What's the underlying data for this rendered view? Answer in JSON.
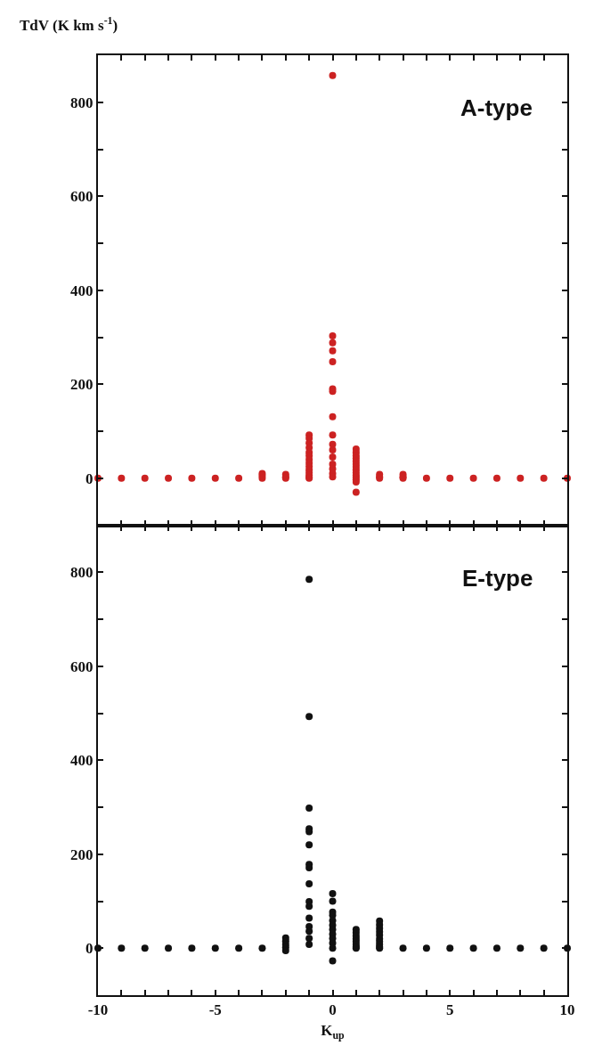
{
  "chart_data": [
    {
      "type": "scatter",
      "ylabel": "TdV (K km s$^{-1}$)",
      "annotations": [
        "A-type"
      ],
      "tick_labels": "y",
      "marker": "circle",
      "xlim": [
        -10,
        10
      ],
      "xticks": [
        {
          "value": -10,
          "label": null
        },
        {
          "value": -9,
          "label": null
        },
        {
          "value": -8,
          "label": null
        },
        {
          "value": -7,
          "label": null
        },
        {
          "value": -6,
          "label": null
        },
        {
          "value": -5,
          "label": null
        },
        {
          "value": -4,
          "label": null
        },
        {
          "value": -3,
          "label": null
        },
        {
          "value": -2,
          "label": null
        },
        {
          "value": -1,
          "label": null
        },
        {
          "value": 0,
          "label": null
        },
        {
          "value": 1,
          "label": null
        },
        {
          "value": 2,
          "label": null
        },
        {
          "value": 3,
          "label": null
        },
        {
          "value": 4,
          "label": null
        },
        {
          "value": 5,
          "label": null
        },
        {
          "value": 6,
          "label": null
        },
        {
          "value": 7,
          "label": null
        },
        {
          "value": 8,
          "label": null
        },
        {
          "value": 9,
          "label": null
        },
        {
          "value": 10,
          "label": null
        }
      ],
      "ylim": [
        -100,
        900
      ],
      "yticks": [
        {
          "value": -100,
          "label": null
        },
        0,
        {
          "value": 100,
          "label": null
        },
        200,
        {
          "value": 300,
          "label": null
        },
        400,
        {
          "value": 500,
          "label": null
        },
        600,
        {
          "value": 700,
          "label": null
        },
        800,
        {
          "value": 900,
          "label": null
        }
      ],
      "series": [
        {
          "color": "#cc2222",
          "x": [
            -10,
            -9,
            -8,
            -7,
            -6,
            -5,
            -4,
            -3,
            -3,
            -3,
            -2,
            -2,
            -2,
            -1,
            -1,
            -1,
            -1,
            -1,
            -1,
            -1,
            -1,
            -1,
            -1,
            -1,
            -1,
            -1,
            -1,
            0,
            0,
            0,
            0,
            0,
            0,
            0,
            0,
            0,
            0,
            0,
            0,
            0,
            0,
            0,
            0,
            1,
            1,
            1,
            1,
            1,
            1,
            1,
            1,
            1,
            1,
            1,
            1,
            1,
            1,
            2,
            2,
            2,
            3,
            3,
            3,
            4,
            5,
            6,
            7,
            8,
            9,
            10
          ],
          "values": [
            0,
            0,
            0,
            0,
            0,
            0,
            0,
            10,
            5,
            0,
            8,
            3,
            0,
            92,
            85,
            75,
            65,
            55,
            48,
            40,
            32,
            25,
            18,
            12,
            6,
            2,
            0,
            857,
            303,
            288,
            271,
            248,
            190,
            185,
            131,
            92,
            72,
            60,
            45,
            30,
            20,
            10,
            3,
            62,
            55,
            48,
            42,
            36,
            30,
            24,
            18,
            12,
            6,
            2,
            -3,
            -8,
            -30,
            8,
            3,
            0,
            8,
            3,
            0,
            0,
            0,
            0,
            0,
            0,
            0,
            0
          ]
        }
      ]
    },
    {
      "type": "scatter",
      "xlabel": "K$_{up}$",
      "annotations": [
        "E-type"
      ],
      "marker": "circle",
      "xlim": [
        -10,
        10
      ],
      "xticks": [
        -10,
        {
          "value": -9,
          "label": null
        },
        {
          "value": -8,
          "label": null
        },
        {
          "value": -7,
          "label": null
        },
        {
          "value": -6,
          "label": null
        },
        -5,
        {
          "value": -4,
          "label": null
        },
        {
          "value": -3,
          "label": null
        },
        {
          "value": -2,
          "label": null
        },
        {
          "value": -1,
          "label": null
        },
        0,
        {
          "value": 1,
          "label": null
        },
        {
          "value": 2,
          "label": null
        },
        {
          "value": 3,
          "label": null
        },
        {
          "value": 4,
          "label": null
        },
        5,
        {
          "value": 6,
          "label": null
        },
        {
          "value": 7,
          "label": null
        },
        {
          "value": 8,
          "label": null
        },
        {
          "value": 9,
          "label": null
        },
        10
      ],
      "ylim": [
        -100,
        900
      ],
      "yticks": [
        {
          "value": -100,
          "label": null
        },
        0,
        {
          "value": 100,
          "label": null
        },
        200,
        {
          "value": 300,
          "label": null
        },
        400,
        {
          "value": 500,
          "label": null
        },
        600,
        {
          "value": 700,
          "label": null
        },
        800,
        {
          "value": 900,
          "label": null
        }
      ],
      "series": [
        {
          "color": "#111111",
          "x": [
            -10,
            -9,
            -8,
            -7,
            -6,
            -5,
            -4,
            -3,
            -2,
            -2,
            -2,
            -2,
            -2,
            -1,
            -1,
            -1,
            -1,
            -1,
            -1,
            -1,
            -1,
            -1,
            -1,
            -1,
            -1,
            -1,
            -1,
            -1,
            -1,
            0,
            0,
            0,
            0,
            0,
            0,
            0,
            0,
            0,
            0,
            0,
            0,
            1,
            1,
            1,
            1,
            1,
            1,
            1,
            1,
            2,
            2,
            2,
            2,
            2,
            2,
            2,
            2,
            2,
            2,
            3,
            4,
            5,
            6,
            7,
            8,
            9,
            10
          ],
          "values": [
            0,
            0,
            0,
            0,
            0,
            0,
            0,
            0,
            22,
            15,
            8,
            2,
            -5,
            785,
            493,
            298,
            254,
            248,
            220,
            178,
            171,
            137,
            99,
            89,
            64,
            46,
            36,
            21,
            8,
            116,
            100,
            77,
            70,
            59,
            49,
            40,
            30,
            21,
            11,
            0,
            -27,
            40,
            33,
            26,
            20,
            14,
            8,
            3,
            0,
            58,
            50,
            42,
            35,
            28,
            20,
            14,
            8,
            3,
            0,
            0,
            0,
            0,
            0,
            0,
            0,
            0,
            0
          ]
        }
      ]
    }
  ]
}
